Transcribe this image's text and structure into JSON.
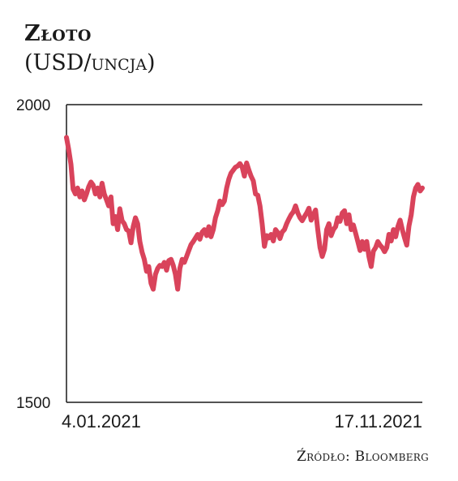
{
  "title": "Złoto",
  "subtitle": "(USD/uncja)",
  "source": "Źródło: Bloomberg",
  "colors": {
    "line": "#d9435b",
    "axis": "#1a1a1a"
  },
  "chart_data": {
    "type": "line",
    "title": "Złoto",
    "ylabel": "(USD/uncja)",
    "ylim": [
      1500,
      2000
    ],
    "yticks": [
      "2000",
      "1500"
    ],
    "x_start_label": "4.01.2021",
    "x_end_label": "17.11.2021",
    "grid": false,
    "series": [
      {
        "values": [
          1945,
          1925,
          1900,
          1858,
          1850,
          1860,
          1845,
          1855,
          1840,
          1850,
          1862,
          1870,
          1865,
          1850,
          1860,
          1845,
          1868,
          1850,
          1840,
          1830,
          1845,
          1800,
          1812,
          1790,
          1825,
          1805,
          1800,
          1790,
          1788,
          1768,
          1795,
          1810,
          1800,
          1770,
          1752,
          1740,
          1720,
          1728,
          1700,
          1690,
          1715,
          1725,
          1730,
          1728,
          1735,
          1722,
          1738,
          1740,
          1730,
          1715,
          1690,
          1725,
          1740,
          1735,
          1745,
          1755,
          1765,
          1770,
          1776,
          1782,
          1774,
          1786,
          1790,
          1780,
          1795,
          1778,
          1790,
          1810,
          1822,
          1838,
          1832,
          1838,
          1860,
          1875,
          1885,
          1890,
          1895,
          1897,
          1901,
          1895,
          1880,
          1902,
          1890,
          1880,
          1872,
          1850,
          1848,
          1830,
          1800,
          1762,
          1780,
          1776,
          1782,
          1771,
          1790,
          1785,
          1775,
          1786,
          1790,
          1800,
          1808,
          1815,
          1820,
          1830,
          1818,
          1810,
          1805,
          1812,
          1818,
          1826,
          1806,
          1815,
          1823,
          1790,
          1760,
          1745,
          1757,
          1790,
          1800,
          1780,
          1790,
          1795,
          1810,
          1804,
          1818,
          1822,
          1800,
          1815,
          1790,
          1798,
          1784,
          1770,
          1755,
          1770,
          1757,
          1770,
          1745,
          1728,
          1754,
          1760,
          1770,
          1764,
          1760,
          1753,
          1760,
          1782,
          1771,
          1790,
          1778,
          1795,
          1806,
          1790,
          1776,
          1764,
          1796,
          1815,
          1845,
          1860,
          1866,
          1855,
          1860
        ]
      }
    ]
  }
}
